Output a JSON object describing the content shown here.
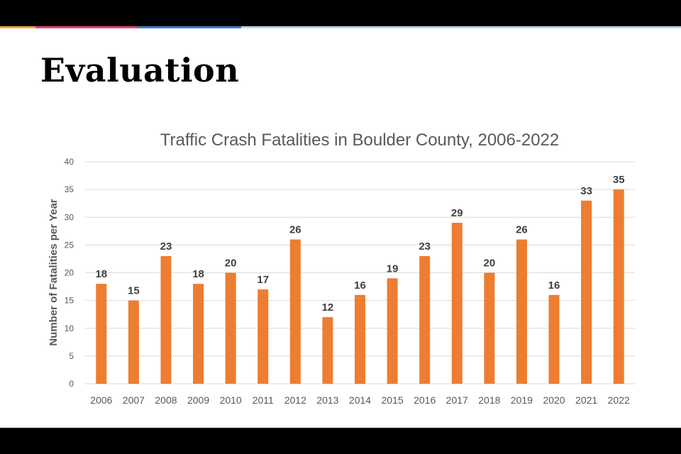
{
  "slide": {
    "title": "Evaluation",
    "accent_colors": [
      "#f4a93a",
      "#e0457b",
      "#3a7fd5",
      "#bcd7ea"
    ]
  },
  "chart_data": {
    "type": "bar",
    "title": "Traffic Crash Fatalities in Boulder County, 2006-2022",
    "xlabel": "",
    "ylabel": "Number of Fatalities per Year",
    "categories": [
      "2006",
      "2007",
      "2008",
      "2009",
      "2010",
      "2011",
      "2012",
      "2013",
      "2014",
      "2015",
      "2016",
      "2017",
      "2018",
      "2019",
      "2020",
      "2021",
      "2022"
    ],
    "values": [
      18,
      15,
      23,
      18,
      20,
      17,
      26,
      12,
      16,
      19,
      23,
      29,
      20,
      26,
      16,
      33,
      35
    ],
    "ylim": [
      0,
      40
    ],
    "yticks": [
      0,
      5,
      10,
      15,
      20,
      25,
      30,
      35,
      40
    ],
    "bar_color": "#ed7d31",
    "grid": true,
    "data_labels": true
  }
}
